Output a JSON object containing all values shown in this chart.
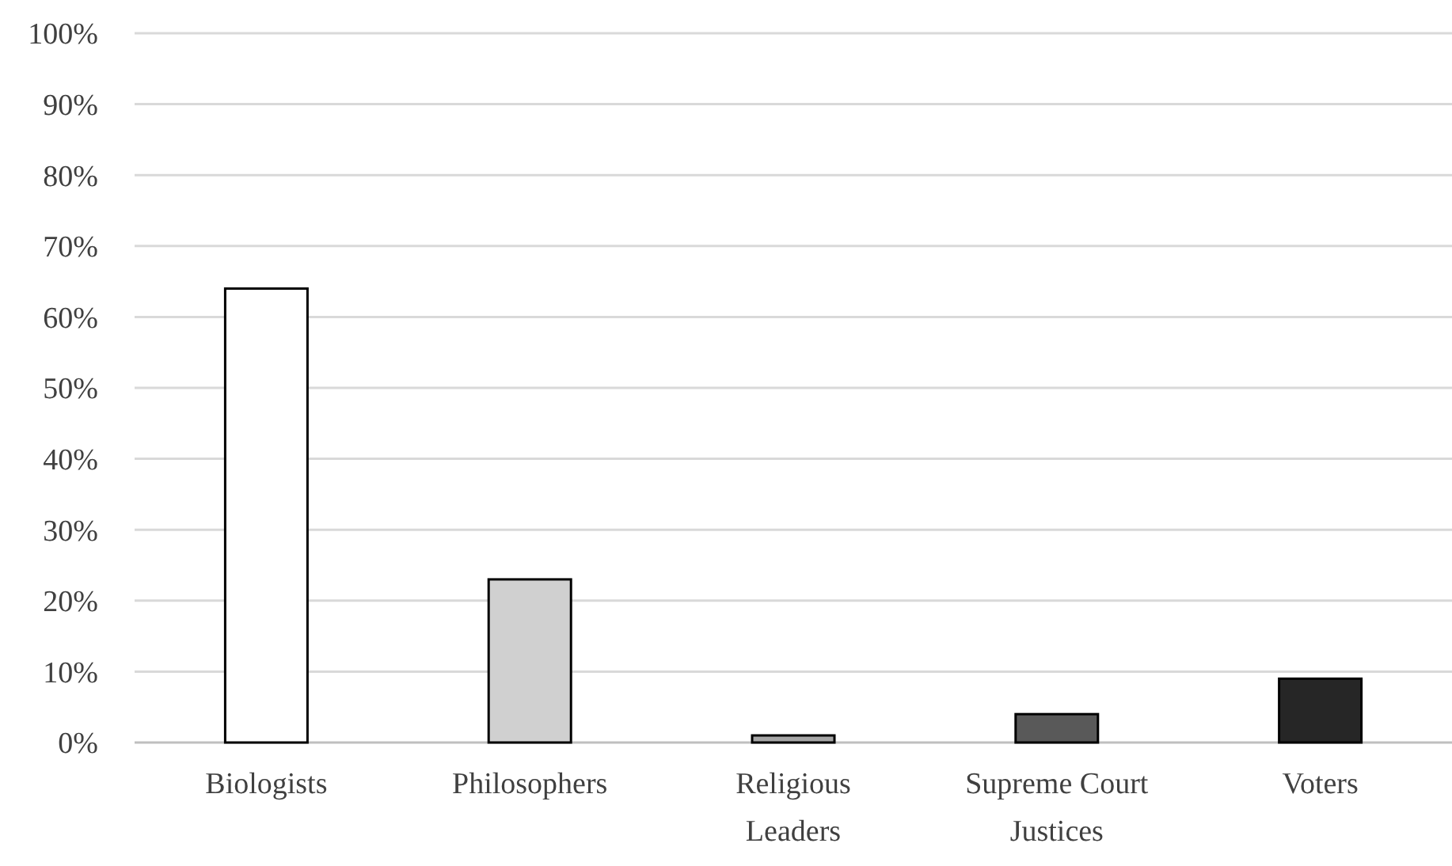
{
  "chart_data": {
    "type": "bar",
    "categories": [
      "Biologists",
      "Philosophers",
      "Religious Leaders",
      "Supreme Court Justices",
      "Voters"
    ],
    "values": [
      64,
      23,
      1,
      4,
      9
    ],
    "colors": [
      "#ffffff",
      "#d0d0d0",
      "#a6a6a6",
      "#595959",
      "#262626"
    ],
    "ylim": [
      0,
      100
    ],
    "yticks": [
      {
        "value": 0,
        "label": "0%"
      },
      {
        "value": 10,
        "label": "10%"
      },
      {
        "value": 20,
        "label": "20%"
      },
      {
        "value": 30,
        "label": "30%"
      },
      {
        "value": 40,
        "label": "40%"
      },
      {
        "value": 50,
        "label": "50%"
      },
      {
        "value": 60,
        "label": "60%"
      },
      {
        "value": 70,
        "label": "70%"
      },
      {
        "value": 80,
        "label": "80%"
      },
      {
        "value": 90,
        "label": "90%"
      },
      {
        "value": 100,
        "label": "100%"
      }
    ],
    "grid": "y"
  }
}
